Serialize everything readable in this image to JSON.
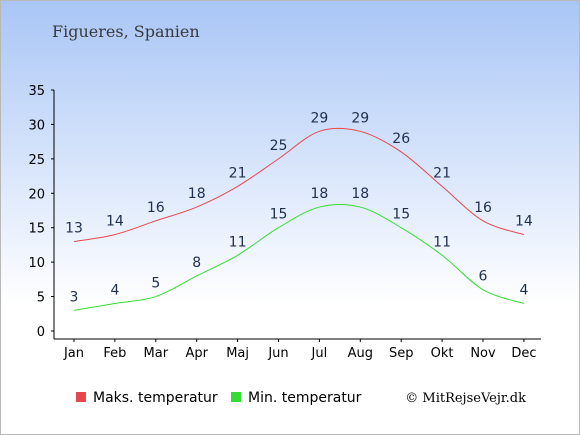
{
  "chart_data": {
    "type": "line",
    "title": "Figueres, Spanien",
    "categories": [
      "Jan",
      "Feb",
      "Mar",
      "Apr",
      "Maj",
      "Jun",
      "Jul",
      "Aug",
      "Sep",
      "Okt",
      "Nov",
      "Dec"
    ],
    "ylim": [
      0,
      35
    ],
    "yticks": [
      0,
      5,
      10,
      15,
      20,
      25,
      30,
      35
    ],
    "grid": false,
    "legend_position": "bottom",
    "series": [
      {
        "name": "Maks. temperatur",
        "color": "#e8474f",
        "values": [
          13,
          14,
          16,
          18,
          21,
          25,
          29,
          29,
          26,
          21,
          16,
          14
        ]
      },
      {
        "name": "Min. temperatur",
        "color": "#33dd33",
        "values": [
          3,
          4,
          5,
          8,
          11,
          15,
          18,
          18,
          15,
          11,
          6,
          4
        ]
      }
    ],
    "credit": "© MitRejseVejr.dk"
  }
}
